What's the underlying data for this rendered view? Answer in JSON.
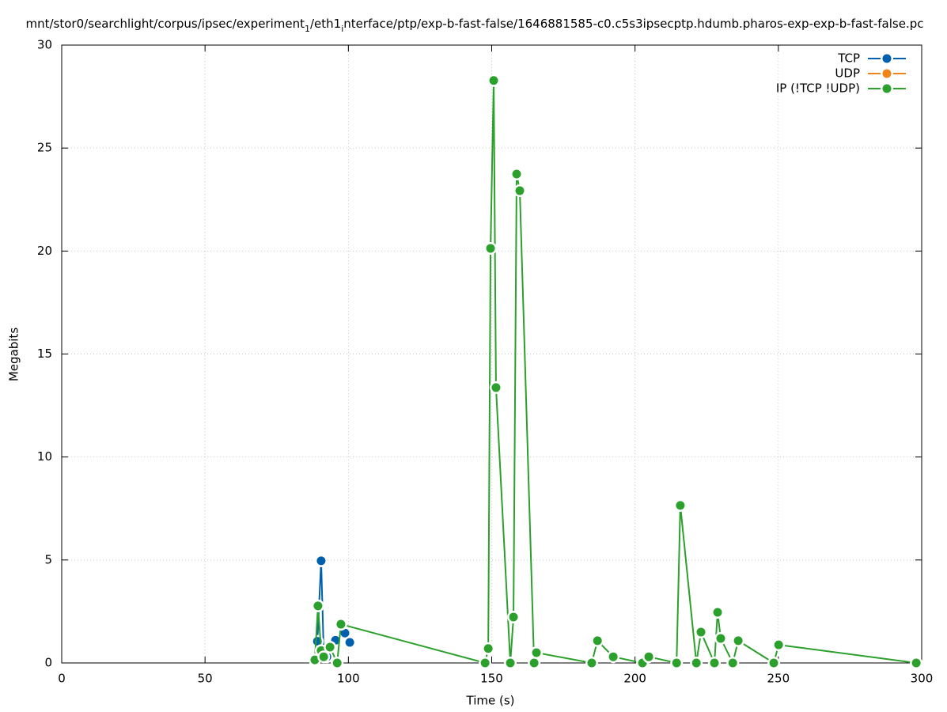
{
  "chart_data": {
    "type": "line",
    "title": [
      "mnt/stor0/searchlight/corpus/ipsec/experiment",
      "1",
      "/eth1",
      "i",
      "nterface/ptp/exp-b-fast-false/1646881585-c0.c5s3ipsecptp.hdumb.pharos-exp-exp-b-fast-false.pc"
    ],
    "x_label": "Time (s)",
    "y_label": "Megabits",
    "xlim": [
      0,
      300
    ],
    "xticks": [
      0,
      50,
      100,
      150,
      200,
      250,
      300
    ],
    "ylim": [
      0,
      30
    ],
    "yticks": [
      0,
      5,
      10,
      15,
      20,
      25,
      30
    ],
    "grid": true,
    "legend": "top-right",
    "series": [
      {
        "name": "TCP",
        "color": "#0060ad",
        "x": [
          89.2,
          90.5,
          91.4,
          92.5,
          95.5,
          98.8,
          100.5
        ],
        "values": [
          1.05,
          4.96,
          0.5,
          0.3,
          1.1,
          1.45,
          1.0
        ]
      },
      {
        "name": "UDP",
        "color": "#f08419",
        "x": [],
        "values": []
      },
      {
        "name": "IP (!TCP  !UDP)",
        "color": "#2ca02c",
        "x": [
          88.3,
          89.4,
          90.5,
          91.4,
          93.6,
          96.1,
          97.4,
          147.7,
          148.8,
          149.6,
          150.7,
          151.5,
          156.5,
          157.6,
          158.7,
          159.8,
          164.8,
          165.6,
          184.9,
          186.9,
          192.4,
          202.6,
          204.8,
          214.5,
          215.8,
          221.4,
          223.0,
          227.7,
          228.8,
          229.9,
          234.1,
          236.0,
          248.4,
          250.1,
          298.1
        ],
        "values": [
          0.15,
          2.77,
          0.6,
          0.3,
          0.77,
          0,
          1.88,
          0,
          0.7,
          20.13,
          28.28,
          13.37,
          0,
          2.23,
          23.74,
          22.93,
          0,
          0.5,
          0,
          1.08,
          0.3,
          0,
          0.3,
          0,
          7.65,
          0,
          1.5,
          0,
          2.46,
          1.19,
          0,
          1.08,
          0,
          0.88,
          0
        ]
      }
    ]
  }
}
